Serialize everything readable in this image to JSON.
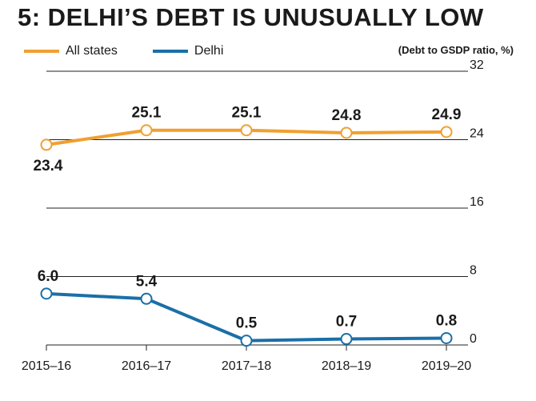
{
  "title": "5: DELHI’S DEBT IS UNUSUALLY LOW",
  "note": "(Debt to GSDP ratio, %)",
  "colors": {
    "all_states": "#f0a030",
    "delhi": "#1a6fa8"
  },
  "chart_data": {
    "type": "line",
    "title": "5: DELHI’S DEBT IS UNUSUALLY LOW",
    "ylabel": "(Debt to GSDP ratio, %)",
    "categories": [
      "2015–16",
      "2016–17",
      "2017–18",
      "2018–19",
      "2019–20"
    ],
    "ylim": [
      0,
      32
    ],
    "yticks": [
      0,
      8,
      16,
      24,
      32
    ],
    "grid": true,
    "legend_position": "top-left",
    "series": [
      {
        "name": "All states",
        "color": "#f0a030",
        "values": [
          23.4,
          25.1,
          25.1,
          24.8,
          24.9
        ],
        "labels": [
          "23.4",
          "25.1",
          "25.1",
          "24.8",
          "24.9"
        ]
      },
      {
        "name": "Delhi",
        "color": "#1a6fa8",
        "values": [
          6.0,
          5.4,
          0.5,
          0.7,
          0.8
        ],
        "labels": [
          "6.0",
          "5.4",
          "0.5",
          "0.7",
          "0.8"
        ]
      }
    ]
  }
}
